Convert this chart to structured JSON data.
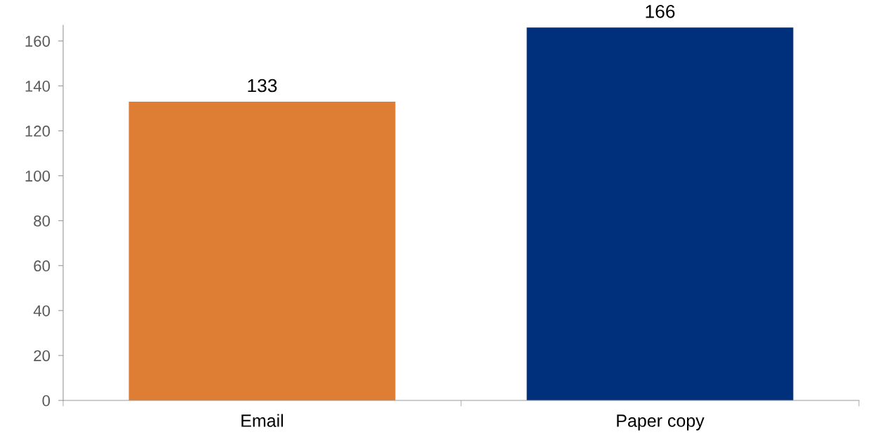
{
  "chart_data": {
    "type": "bar",
    "categories": [
      "Email",
      "Paper copy"
    ],
    "values": [
      133,
      166
    ],
    "colors": [
      "#dd7e34",
      "#00307c"
    ],
    "ylim": [
      0,
      167
    ],
    "yticks": [
      0,
      20,
      40,
      60,
      80,
      100,
      120,
      140,
      160
    ],
    "data_labels": true,
    "grid": false
  }
}
